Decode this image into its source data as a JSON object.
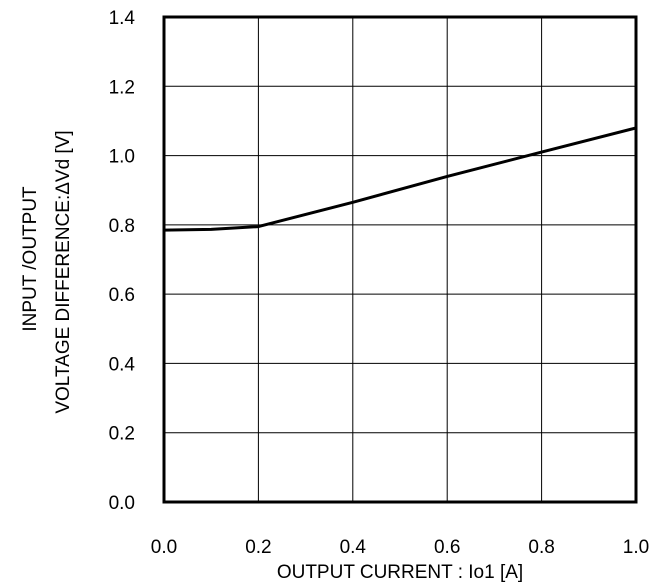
{
  "chart_data": {
    "type": "line",
    "title": "",
    "xlabel": "OUTPUT CURRENT : Io1 [A]",
    "ylabel_line1": "INPUT /OUTPUT",
    "ylabel_line2": "VOLTAGE DIFFERENCE:ΔVd [V]",
    "xlim": [
      0,
      1.0
    ],
    "ylim": [
      0,
      1.4
    ],
    "x_ticks": [
      "0.0",
      "0.2",
      "0.4",
      "0.6",
      "0.8",
      "1.0"
    ],
    "y_ticks": [
      "0.0",
      "0.2",
      "0.4",
      "0.6",
      "0.8",
      "1.0",
      "1.2",
      "1.4"
    ],
    "grid": true,
    "series": [
      {
        "x": [
          0.0,
          0.1,
          0.2,
          0.4,
          0.6,
          0.8,
          1.0
        ],
        "y": [
          0.785,
          0.787,
          0.795,
          0.865,
          0.94,
          1.01,
          1.08
        ]
      }
    ],
    "line_color": "#000000"
  }
}
